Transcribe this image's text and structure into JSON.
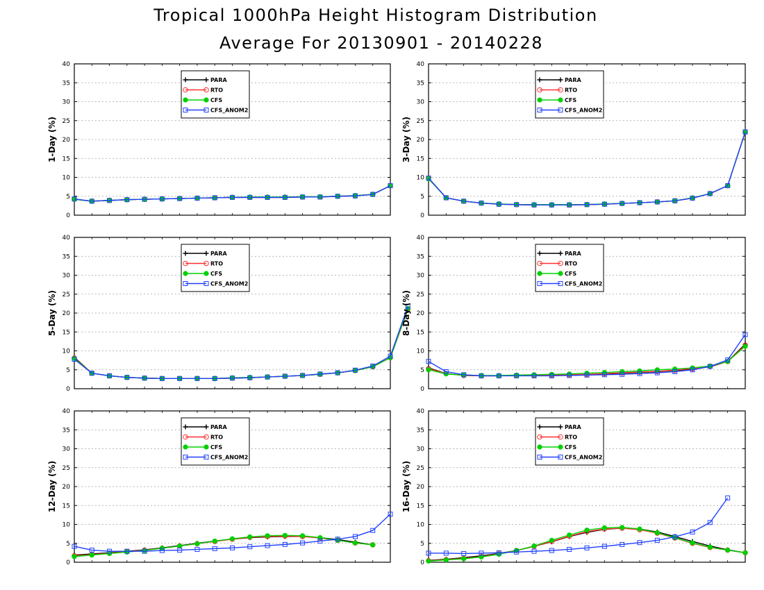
{
  "header": {
    "title": "Tropical 1000hPa Height Histogram Distribution",
    "subtitle": "Average For 20130901 - 20140228"
  },
  "colors": {
    "PARA": "#000000",
    "RTO": "#ff3030",
    "CFS": "#00d000",
    "CFS_ANOM2": "#2040ff",
    "grid": "#a0a0a0"
  },
  "chart_data": [
    {
      "type": "line",
      "ylabel": "1-Day (%)",
      "ylim": [
        0,
        40
      ],
      "yticks": [
        0,
        5,
        10,
        15,
        20,
        25,
        30,
        35,
        40
      ],
      "grid": true,
      "legend": "top-center",
      "series": [
        {
          "name": "PARA",
          "marker": "plus",
          "values": [
            4.2,
            3.7,
            3.9,
            4.1,
            4.2,
            4.3,
            4.4,
            4.5,
            4.6,
            4.7,
            4.7,
            4.7,
            4.7,
            4.8,
            4.8,
            5.0,
            5.1,
            5.5,
            7.8
          ]
        },
        {
          "name": "RTO",
          "marker": "circle",
          "values": [
            4.2,
            3.7,
            3.9,
            4.1,
            4.2,
            4.3,
            4.4,
            4.5,
            4.6,
            4.7,
            4.7,
            4.7,
            4.7,
            4.8,
            4.8,
            5.0,
            5.1,
            5.5,
            7.8
          ]
        },
        {
          "name": "CFS",
          "marker": "dot",
          "values": [
            4.2,
            3.7,
            3.9,
            4.1,
            4.2,
            4.3,
            4.4,
            4.5,
            4.6,
            4.7,
            4.8,
            4.8,
            4.8,
            4.9,
            4.9,
            5.0,
            5.2,
            5.5,
            7.8
          ]
        },
        {
          "name": "CFS_ANOM2",
          "marker": "square",
          "values": [
            4.3,
            3.7,
            3.9,
            4.1,
            4.2,
            4.3,
            4.4,
            4.5,
            4.6,
            4.7,
            4.7,
            4.7,
            4.7,
            4.8,
            4.8,
            5.0,
            5.1,
            5.5,
            7.8
          ]
        }
      ]
    },
    {
      "type": "line",
      "ylabel": "3-Day (%)",
      "ylim": [
        0,
        40
      ],
      "yticks": [
        0,
        5,
        10,
        15,
        20,
        25,
        30,
        35,
        40
      ],
      "grid": true,
      "legend": "top-center",
      "series": [
        {
          "name": "PARA",
          "marker": "plus",
          "values": [
            9.8,
            4.6,
            3.7,
            3.2,
            2.9,
            2.8,
            2.7,
            2.7,
            2.7,
            2.8,
            2.9,
            3.1,
            3.3,
            3.5,
            3.8,
            4.5,
            5.7,
            7.8,
            22.0
          ]
        },
        {
          "name": "RTO",
          "marker": "circle",
          "values": [
            9.8,
            4.6,
            3.7,
            3.2,
            2.9,
            2.8,
            2.7,
            2.7,
            2.7,
            2.8,
            2.9,
            3.1,
            3.3,
            3.5,
            3.8,
            4.5,
            5.7,
            7.8,
            22.0
          ]
        },
        {
          "name": "CFS",
          "marker": "dot",
          "values": [
            9.6,
            4.6,
            3.7,
            3.2,
            3.0,
            2.8,
            2.8,
            2.8,
            2.8,
            2.8,
            3.0,
            3.1,
            3.3,
            3.5,
            3.8,
            4.6,
            5.7,
            7.8,
            22.0
          ]
        },
        {
          "name": "CFS_ANOM2",
          "marker": "square",
          "values": [
            9.8,
            4.6,
            3.7,
            3.2,
            2.9,
            2.8,
            2.7,
            2.7,
            2.7,
            2.8,
            2.9,
            3.1,
            3.3,
            3.5,
            3.8,
            4.5,
            5.7,
            7.8,
            22.0
          ]
        }
      ]
    },
    {
      "type": "line",
      "ylabel": "5-Day (%)",
      "ylim": [
        0,
        40
      ],
      "yticks": [
        0,
        5,
        10,
        15,
        20,
        25,
        30,
        35,
        40
      ],
      "grid": true,
      "legend": "top-center",
      "series": [
        {
          "name": "PARA",
          "marker": "plus",
          "values": [
            8.3,
            4.1,
            3.4,
            3.0,
            2.8,
            2.7,
            2.7,
            2.7,
            2.7,
            2.8,
            2.9,
            3.1,
            3.3,
            3.5,
            3.8,
            4.2,
            4.8,
            5.8,
            8.2,
            21.0
          ]
        },
        {
          "name": "RTO",
          "marker": "circle",
          "values": [
            8.1,
            4.1,
            3.4,
            3.0,
            2.8,
            2.7,
            2.7,
            2.7,
            2.7,
            2.8,
            2.9,
            3.1,
            3.3,
            3.5,
            3.8,
            4.2,
            4.8,
            5.8,
            8.2,
            21.0
          ]
        },
        {
          "name": "CFS",
          "marker": "dot",
          "values": [
            8.0,
            4.1,
            3.4,
            3.0,
            2.8,
            2.7,
            2.7,
            2.7,
            2.7,
            2.9,
            3.0,
            3.1,
            3.3,
            3.5,
            3.8,
            4.2,
            4.8,
            5.8,
            8.2,
            21.2
          ]
        },
        {
          "name": "CFS_ANOM2",
          "marker": "square",
          "values": [
            7.8,
            4.1,
            3.4,
            3.0,
            2.8,
            2.7,
            2.7,
            2.7,
            2.7,
            2.8,
            2.9,
            3.1,
            3.3,
            3.5,
            3.9,
            4.2,
            4.9,
            6.0,
            8.6,
            21.8
          ]
        }
      ]
    },
    {
      "type": "line",
      "ylabel": "8-Day (%)",
      "ylim": [
        0,
        40
      ],
      "yticks": [
        0,
        5,
        10,
        15,
        20,
        25,
        30,
        35,
        40
      ],
      "grid": true,
      "legend": "top-center",
      "series": [
        {
          "name": "PARA",
          "marker": "plus",
          "values": [
            5.5,
            4.0,
            3.5,
            3.4,
            3.4,
            3.5,
            3.5,
            3.5,
            3.6,
            3.7,
            3.9,
            4.1,
            4.3,
            4.5,
            4.8,
            5.2,
            5.8,
            7.2,
            11.8
          ]
        },
        {
          "name": "RTO",
          "marker": "circle",
          "values": [
            5.3,
            4.0,
            3.5,
            3.4,
            3.4,
            3.5,
            3.5,
            3.6,
            3.7,
            3.8,
            4.0,
            4.2,
            4.4,
            4.6,
            4.9,
            5.3,
            5.9,
            7.2,
            11.5
          ]
        },
        {
          "name": "CFS",
          "marker": "dot",
          "values": [
            5.0,
            3.9,
            3.6,
            3.5,
            3.5,
            3.6,
            3.7,
            3.8,
            3.9,
            4.1,
            4.3,
            4.5,
            4.7,
            5.0,
            5.2,
            5.5,
            6.0,
            7.2,
            11.2
          ]
        },
        {
          "name": "CFS_ANOM2",
          "marker": "square",
          "values": [
            7.2,
            4.5,
            3.7,
            3.4,
            3.4,
            3.4,
            3.4,
            3.4,
            3.5,
            3.6,
            3.7,
            3.8,
            4.0,
            4.2,
            4.5,
            5.0,
            5.9,
            7.6,
            14.3
          ]
        }
      ]
    },
    {
      "type": "line",
      "ylabel": "12-Day (%)",
      "ylim": [
        0,
        40
      ],
      "yticks": [
        0,
        5,
        10,
        15,
        20,
        25,
        30,
        35,
        40
      ],
      "grid": true,
      "legend": "top-center",
      "series": [
        {
          "name": "PARA",
          "marker": "plus",
          "values": [
            1.9,
            2.2,
            2.5,
            2.9,
            3.3,
            3.8,
            4.4,
            5.0,
            5.6,
            6.1,
            6.5,
            6.7,
            6.8,
            6.8,
            6.5,
            6.0,
            5.3,
            4.6
          ]
        },
        {
          "name": "RTO",
          "marker": "circle",
          "values": [
            1.7,
            2.0,
            2.4,
            2.8,
            3.2,
            3.7,
            4.3,
            4.9,
            5.5,
            6.1,
            6.6,
            6.8,
            6.9,
            6.8,
            6.4,
            5.8,
            5.1,
            4.6
          ]
        },
        {
          "name": "CFS",
          "marker": "dot",
          "values": [
            1.5,
            1.9,
            2.3,
            2.7,
            3.1,
            3.7,
            4.3,
            4.9,
            5.6,
            6.2,
            6.7,
            7.0,
            7.1,
            7.0,
            6.5,
            5.8,
            5.1,
            4.6
          ]
        },
        {
          "name": "CFS_ANOM2",
          "marker": "square",
          "values": [
            4.2,
            3.2,
            2.9,
            2.9,
            2.9,
            3.1,
            3.2,
            3.4,
            3.6,
            3.8,
            4.1,
            4.4,
            4.7,
            5.1,
            5.6,
            6.1,
            6.8,
            8.4,
            12.7
          ]
        }
      ]
    },
    {
      "type": "line",
      "ylabel": "16-Day (%)",
      "ylim": [
        0,
        40
      ],
      "yticks": [
        0,
        5,
        10,
        15,
        20,
        25,
        30,
        35,
        40
      ],
      "grid": true,
      "legend": "top-center",
      "series": [
        {
          "name": "PARA",
          "marker": "plus",
          "values": [
            0.5,
            0.8,
            1.2,
            1.7,
            2.3,
            3.1,
            4.2,
            5.4,
            6.8,
            7.9,
            8.7,
            9.0,
            8.8,
            8.0,
            6.8,
            5.5,
            4.3,
            3.3,
            2.5
          ]
        },
        {
          "name": "RTO",
          "marker": "circle",
          "values": [
            0.4,
            0.7,
            1.0,
            1.5,
            2.2,
            3.1,
            4.2,
            5.5,
            6.9,
            8.1,
            8.8,
            9.0,
            8.6,
            7.7,
            6.4,
            5.0,
            3.9,
            3.2,
            2.5
          ]
        },
        {
          "name": "CFS",
          "marker": "dot",
          "values": [
            0.3,
            0.6,
            0.9,
            1.4,
            2.1,
            3.1,
            4.3,
            5.8,
            7.2,
            8.5,
            9.1,
            9.2,
            8.8,
            7.8,
            6.5,
            5.1,
            4.0,
            3.2,
            2.5
          ]
        },
        {
          "name": "CFS_ANOM2",
          "marker": "square",
          "values": [
            2.4,
            2.4,
            2.3,
            2.4,
            2.5,
            2.7,
            2.9,
            3.1,
            3.4,
            3.8,
            4.2,
            4.7,
            5.2,
            5.8,
            6.7,
            8.0,
            10.5,
            17.0
          ]
        }
      ]
    }
  ]
}
